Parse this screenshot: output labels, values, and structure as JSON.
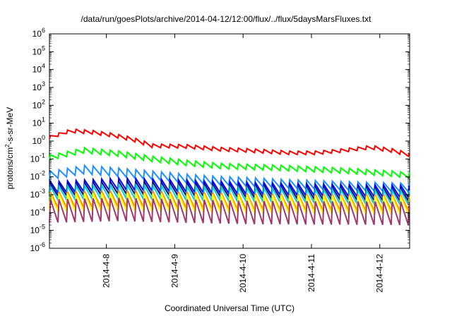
{
  "chart_data": {
    "type": "line",
    "title": "/data/run/goesPlots/archive/2014-04-12/12:00/flux/../flux/5daysMarsFluxes.txt",
    "xlabel": "Coordinated Universal Time (UTC)",
    "ylabel": {
      "prefix": "protons/cm",
      "sup": "2",
      "suffix": "-s-sr-MeV"
    },
    "x_range_days": [
      "2014-04-07 04:00",
      "2014-04-12 12:00"
    ],
    "x_ticks": [
      "2014-4-8",
      "2014-4-9",
      "2014-4-10",
      "2014-4-11",
      "2014-4-12"
    ],
    "y_scale": "log",
    "ylim": [
      1e-06,
      1000000.0
    ],
    "y_ticks": [
      {
        "base": "10",
        "exp": "-6"
      },
      {
        "base": "10",
        "exp": "-5"
      },
      {
        "base": "10",
        "exp": "-4"
      },
      {
        "base": "10",
        "exp": "-3"
      },
      {
        "base": "10",
        "exp": "-2"
      },
      {
        "base": "10",
        "exp": "-1"
      },
      {
        "base": "10",
        "exp": "0"
      },
      {
        "base": "10",
        "exp": "1"
      },
      {
        "base": "10",
        "exp": "2"
      },
      {
        "base": "10",
        "exp": "3"
      },
      {
        "base": "10",
        "exp": "4"
      },
      {
        "base": "10",
        "exp": "5"
      },
      {
        "base": "10",
        "exp": "6"
      }
    ],
    "grid": false,
    "legend": "none",
    "series": [
      {
        "color": "#ff0000",
        "profile": [
          [
            0.0,
            1.6
          ],
          [
            0.3,
            3.8
          ],
          [
            0.6,
            3.2
          ],
          [
            0.9,
            2.2
          ],
          [
            1.2,
            1.3
          ],
          [
            1.5,
            0.55
          ],
          [
            2.0,
            0.5
          ],
          [
            2.5,
            0.35
          ],
          [
            2.9,
            0.3
          ],
          [
            3.5,
            0.22
          ],
          [
            3.9,
            0.22
          ],
          [
            4.3,
            0.3
          ],
          [
            4.7,
            0.45
          ],
          [
            5.0,
            0.3
          ],
          [
            5.27,
            0.17
          ]
        ],
        "sawtooth": 1.6
      },
      {
        "color": "#00ff00",
        "profile": [
          [
            0.0,
            0.12
          ],
          [
            0.5,
            0.3
          ],
          [
            1.0,
            0.2
          ],
          [
            1.5,
            0.1
          ],
          [
            2.0,
            0.06
          ],
          [
            2.5,
            0.04
          ],
          [
            3.0,
            0.035
          ],
          [
            3.5,
            0.03
          ],
          [
            4.0,
            0.025
          ],
          [
            4.5,
            0.02
          ],
          [
            5.0,
            0.015
          ],
          [
            5.27,
            0.012
          ]
        ],
        "sawtooth": 2.0
      },
      {
        "color": "#1e90ff",
        "profile": [
          [
            0.0,
            0.012
          ],
          [
            0.5,
            0.025
          ],
          [
            1.0,
            0.018
          ],
          [
            1.5,
            0.012
          ],
          [
            2.0,
            0.008
          ],
          [
            2.5,
            0.006
          ],
          [
            3.0,
            0.005
          ],
          [
            3.5,
            0.004
          ],
          [
            4.0,
            0.0035
          ],
          [
            4.5,
            0.003
          ],
          [
            5.27,
            0.0025
          ]
        ],
        "sawtooth": 3.0
      },
      {
        "color": "#0000ff",
        "profile": [
          [
            0.0,
            0.0025
          ],
          [
            1.0,
            0.004
          ],
          [
            2.0,
            0.003
          ],
          [
            3.0,
            0.0022
          ],
          [
            4.0,
            0.0018
          ],
          [
            5.27,
            0.0015
          ]
        ],
        "sawtooth": 4.5
      },
      {
        "color": "#000080",
        "profile": [
          [
            0.0,
            0.0018
          ],
          [
            1.0,
            0.0025
          ],
          [
            2.0,
            0.002
          ],
          [
            3.0,
            0.0015
          ],
          [
            4.0,
            0.0012
          ],
          [
            5.27,
            0.001
          ]
        ],
        "sawtooth": 5.0
      },
      {
        "color": "#00ced1",
        "profile": [
          [
            0.0,
            0.0012
          ],
          [
            1.0,
            0.0015
          ],
          [
            2.0,
            0.0012
          ],
          [
            3.0,
            0.001
          ],
          [
            4.0,
            0.0008
          ],
          [
            5.27,
            0.0007
          ]
        ],
        "sawtooth": 6.0
      },
      {
        "color": "#ff8c00",
        "profile": [
          [
            0.0,
            0.0005
          ],
          [
            1.0,
            0.0006
          ],
          [
            2.0,
            0.0005
          ],
          [
            3.0,
            0.0004
          ],
          [
            5.27,
            0.00035
          ]
        ],
        "sawtooth": 8.0
      },
      {
        "color": "#ffff00",
        "profile": [
          [
            0.0,
            0.00035
          ],
          [
            1.0,
            0.0004
          ],
          [
            2.0,
            0.00035
          ],
          [
            3.0,
            0.0003
          ],
          [
            5.27,
            0.00025
          ]
        ],
        "sawtooth": 10.0
      },
      {
        "color": "#a0386e",
        "profile": [
          [
            0.0,
            0.00012
          ],
          [
            1.0,
            0.00015
          ],
          [
            2.0,
            0.00012
          ],
          [
            3.0,
            0.0001
          ],
          [
            5.27,
            9e-05
          ]
        ],
        "sawtooth": 20.0
      }
    ]
  }
}
